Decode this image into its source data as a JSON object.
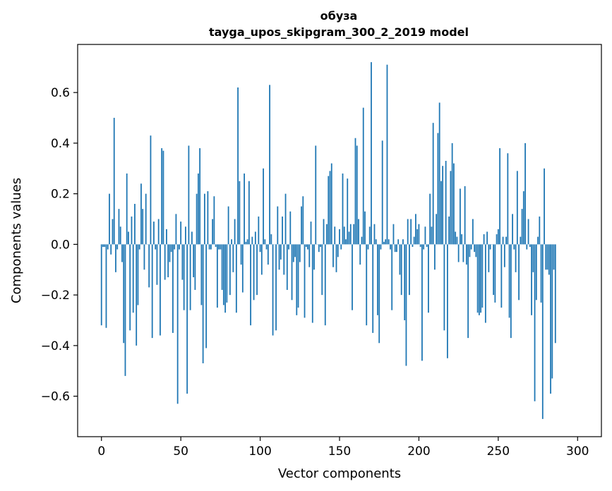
{
  "chart_data": {
    "type": "bar",
    "title": "обуза",
    "subtitle": "tayga_upos_skipgram_300_2_2019 model",
    "xlabel": "Vector components",
    "ylabel": "Components values",
    "xlim": [
      -15,
      315
    ],
    "ylim": [
      -0.76,
      0.79
    ],
    "xticks": [
      0,
      50,
      100,
      150,
      200,
      250,
      300
    ],
    "yticks": [
      -0.6,
      -0.4,
      -0.2,
      0.0,
      0.2,
      0.4,
      0.6
    ],
    "ytick_labels": [
      "−0.6",
      "−0.4",
      "−0.2",
      "0.0",
      "0.2",
      "0.4",
      "0.6"
    ],
    "bar_color": "#1f77b4",
    "values": [
      -0.32,
      -0.01,
      -0.01,
      -0.33,
      -0.02,
      0.2,
      -0.04,
      0.1,
      0.5,
      -0.11,
      -0.02,
      0.14,
      0.07,
      -0.07,
      -0.39,
      -0.52,
      0.28,
      0.05,
      -0.34,
      0.11,
      -0.27,
      0.16,
      -0.4,
      -0.24,
      -0.02,
      0.24,
      0.14,
      -0.1,
      0.2,
      0.0,
      -0.17,
      0.43,
      -0.37,
      0.09,
      -0.02,
      -0.16,
      0.1,
      -0.36,
      0.38,
      0.37,
      -0.14,
      0.06,
      -0.13,
      -0.07,
      -0.03,
      -0.35,
      -0.02,
      0.12,
      -0.63,
      -0.02,
      0.09,
      -0.14,
      -0.26,
      0.07,
      -0.59,
      0.39,
      -0.26,
      0.05,
      -0.13,
      -0.18,
      0.2,
      0.28,
      0.38,
      -0.24,
      -0.47,
      0.2,
      -0.41,
      0.21,
      -0.02,
      -0.02,
      0.1,
      0.19,
      -0.01,
      -0.25,
      -0.02,
      -0.02,
      -0.18,
      -0.24,
      -0.27,
      -0.23,
      0.15,
      -0.2,
      0.02,
      -0.11,
      0.1,
      -0.27,
      0.62,
      0.25,
      -0.08,
      -0.19,
      0.28,
      0.01,
      0.02,
      0.25,
      -0.32,
      0.03,
      -0.22,
      0.05,
      -0.2,
      0.11,
      -0.03,
      -0.12,
      0.3,
      0.02,
      -0.02,
      -0.08,
      0.63,
      0.04,
      -0.36,
      0.0,
      -0.34,
      0.15,
      -0.1,
      -0.06,
      0.11,
      -0.12,
      0.2,
      -0.18,
      -0.02,
      0.13,
      -0.22,
      -0.07,
      -0.05,
      -0.28,
      -0.25,
      -0.07,
      0.15,
      0.19,
      -0.29,
      -0.01,
      -0.02,
      -0.09,
      0.09,
      -0.31,
      -0.1,
      0.39,
      0.0,
      -0.03,
      -0.01,
      -0.2,
      0.1,
      -0.32,
      0.08,
      0.27,
      0.29,
      0.32,
      -0.09,
      0.07,
      -0.11,
      -0.05,
      0.06,
      -0.02,
      0.28,
      0.07,
      0.02,
      0.26,
      0.05,
      0.08,
      -0.26,
      0.08,
      0.42,
      0.39,
      0.1,
      -0.08,
      0.03,
      0.54,
      0.13,
      -0.32,
      -0.02,
      0.07,
      0.72,
      -0.35,
      0.08,
      0.02,
      -0.28,
      -0.39,
      -0.02,
      0.41,
      0.01,
      0.02,
      0.71,
      0.02,
      -0.02,
      -0.26,
      0.08,
      -0.03,
      -0.03,
      0.02,
      -0.12,
      -0.2,
      0.02,
      -0.3,
      -0.48,
      0.1,
      -0.2,
      0.1,
      -0.01,
      0.03,
      0.12,
      0.06,
      0.08,
      -0.01,
      -0.46,
      -0.02,
      0.07,
      -0.01,
      -0.27,
      0.2,
      0.07,
      0.48,
      -0.1,
      0.12,
      0.44,
      0.56,
      0.25,
      0.31,
      -0.34,
      0.33,
      -0.45,
      0.11,
      0.29,
      0.4,
      0.32,
      0.05,
      0.03,
      -0.07,
      0.22,
      0.04,
      -0.07,
      0.23,
      -0.08,
      -0.37,
      -0.05,
      -0.02,
      0.1,
      -0.03,
      -0.05,
      -0.27,
      -0.28,
      -0.27,
      -0.25,
      0.04,
      -0.31,
      0.05,
      -0.11,
      -0.02,
      0.0,
      -0.2,
      -0.23,
      0.04,
      0.06,
      0.38,
      -0.25,
      0.03,
      -0.09,
      0.03,
      0.36,
      -0.29,
      -0.37,
      0.12,
      -0.02,
      -0.11,
      0.29,
      -0.22,
      0.03,
      0.14,
      0.21,
      0.4,
      -0.02,
      0.1,
      -0.01,
      -0.28,
      -0.11,
      -0.62,
      -0.22,
      0.03,
      0.11,
      -0.23,
      -0.69,
      0.3,
      -0.1,
      -0.1,
      -0.12,
      -0.59,
      -0.53,
      -0.1,
      -0.39
    ]
  }
}
